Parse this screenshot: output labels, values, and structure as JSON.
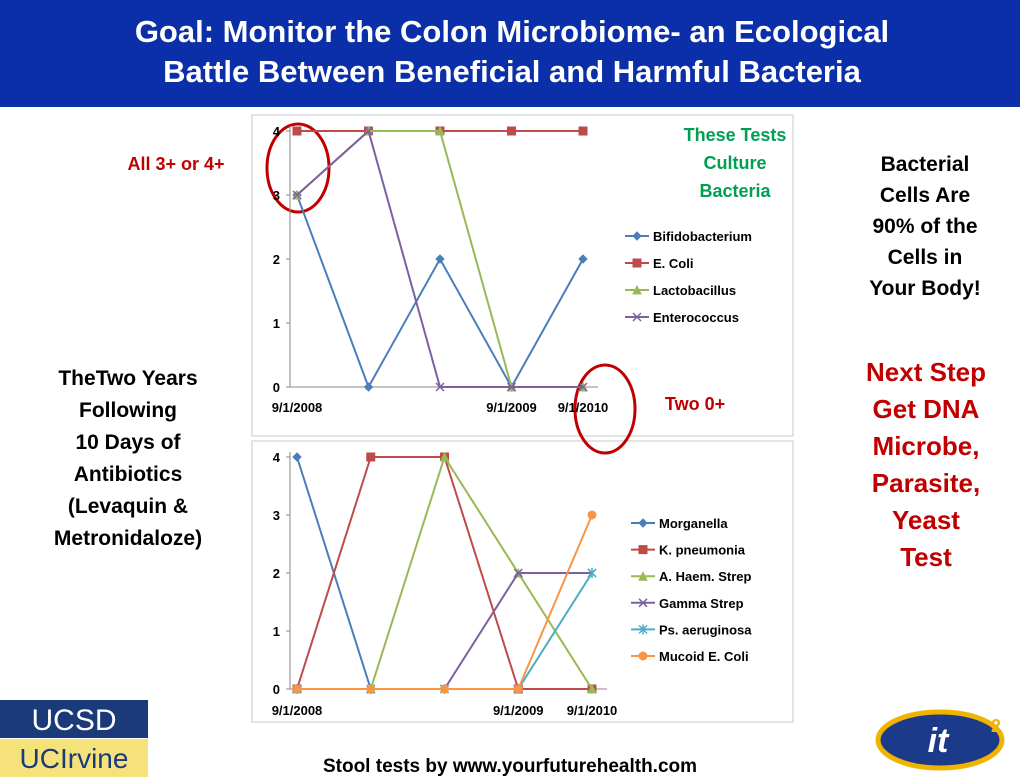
{
  "slide": {
    "title": [
      "Goal: Monitor the Colon Microbiome- an Ecological",
      "Battle Between Beneficial and Harmful Bacteria"
    ],
    "note_top_left": "All 3+ or 4+",
    "note_culture": [
      "These Tests",
      "Culture",
      "Bacteria"
    ],
    "note_cells": [
      "Bacterial",
      "Cells Are",
      "90% of the",
      "Cells in",
      "Your Body!"
    ],
    "note_years": [
      "TheTwo Years",
      "Following",
      "10 Days of",
      "Antibiotics",
      "(Levaquin  &",
      "Metronidaloze)"
    ],
    "note_zero": "Two 0+",
    "note_next": [
      "Next Step",
      "Get DNA",
      "Microbe,",
      "Parasite,",
      "Yeast",
      "Test"
    ],
    "footer": "Stool tests by www.yourfuturehealth.com",
    "logo_1": "UCSD",
    "logo_2": "UCIrvine",
    "logo_3": "it",
    "logo_3_sup": "2"
  },
  "chart_data": [
    {
      "type": "line",
      "categories": [
        "9/1/2008",
        null,
        null,
        "9/1/2009",
        "9/1/2010"
      ],
      "ylim": [
        0,
        4
      ],
      "yticks": [
        0,
        1,
        2,
        3,
        4
      ],
      "legend": "right",
      "series": [
        {
          "name": "Bifidobacterium",
          "color": "#4a7ebb",
          "marker": "diamond",
          "values": [
            3,
            0,
            2,
            0,
            2
          ]
        },
        {
          "name": "E. Coli",
          "color": "#be4b48",
          "marker": "square",
          "values": [
            4,
            4,
            4,
            4,
            4
          ]
        },
        {
          "name": "Lactobacillus",
          "color": "#98b954",
          "marker": "triangle",
          "values": [
            3,
            4,
            4,
            0,
            0
          ]
        },
        {
          "name": "Enterococcus",
          "color": "#7d60a0",
          "marker": "x",
          "values": [
            3,
            4,
            0,
            0,
            0
          ]
        }
      ]
    },
    {
      "type": "line",
      "categories": [
        "9/1/2008",
        null,
        null,
        "9/1/2009",
        "9/1/2010"
      ],
      "ylim": [
        0,
        4
      ],
      "yticks": [
        0,
        1,
        2,
        3,
        4
      ],
      "legend": "right",
      "series": [
        {
          "name": "Morganella",
          "color": "#4a7ebb",
          "marker": "diamond",
          "values": [
            4,
            0,
            0,
            0,
            0
          ]
        },
        {
          "name": "K. pneumonia",
          "color": "#be4b48",
          "marker": "square",
          "values": [
            0,
            4,
            4,
            0,
            0
          ]
        },
        {
          "name": "A. Haem. Strep",
          "color": "#98b954",
          "marker": "triangle",
          "values": [
            0,
            0,
            4,
            2,
            0
          ]
        },
        {
          "name": "Gamma Strep",
          "color": "#7d60a0",
          "marker": "x",
          "values": [
            0,
            0,
            0,
            2,
            2
          ]
        },
        {
          "name": "Ps. aeruginosa",
          "color": "#4bacc6",
          "marker": "star",
          "values": [
            0,
            0,
            0,
            0,
            2
          ]
        },
        {
          "name": "Mucoid E. Coli",
          "color": "#f79646",
          "marker": "circle",
          "values": [
            0,
            0,
            0,
            0,
            3
          ]
        }
      ]
    }
  ]
}
